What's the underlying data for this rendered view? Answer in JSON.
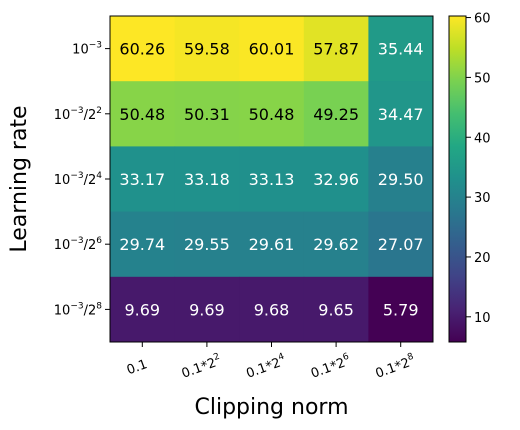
{
  "chart_data": {
    "type": "heatmap",
    "title": "",
    "xlabel": "Clipping norm",
    "ylabel": "Learning rate",
    "x_categories": [
      {
        "base": "0.1",
        "exp": ""
      },
      {
        "base": "0.1*2",
        "exp": "2"
      },
      {
        "base": "0.1*2",
        "exp": "4"
      },
      {
        "base": "0.1*2",
        "exp": "6"
      },
      {
        "base": "0.1*2",
        "exp": "8"
      }
    ],
    "y_categories": [
      {
        "base": "10",
        "exp": "−3",
        "suffix": "",
        "suffix_exp": ""
      },
      {
        "base": "10",
        "exp": "−3",
        "suffix": "/2",
        "suffix_exp": "2"
      },
      {
        "base": "10",
        "exp": "−3",
        "suffix": "/2",
        "suffix_exp": "4"
      },
      {
        "base": "10",
        "exp": "−3",
        "suffix": "/2",
        "suffix_exp": "6"
      },
      {
        "base": "10",
        "exp": "−3",
        "suffix": "/2",
        "suffix_exp": "8"
      }
    ],
    "values": [
      [
        60.26,
        59.58,
        60.01,
        57.87,
        35.44
      ],
      [
        50.48,
        50.31,
        50.48,
        49.25,
        34.47
      ],
      [
        33.17,
        33.18,
        33.13,
        32.96,
        29.5
      ],
      [
        29.74,
        29.55,
        29.61,
        29.62,
        27.07
      ],
      [
        9.69,
        9.69,
        9.68,
        9.65,
        5.79
      ]
    ],
    "value_labels": [
      [
        "60.26",
        "59.58",
        "60.01",
        "57.87",
        "35.44"
      ],
      [
        "50.48",
        "50.31",
        "50.48",
        "49.25",
        "34.47"
      ],
      [
        "33.17",
        "33.18",
        "33.13",
        "32.96",
        "29.50"
      ],
      [
        "29.74",
        "29.55",
        "29.61",
        "29.62",
        "27.07"
      ],
      [
        "9.69",
        "9.69",
        "9.68",
        "9.65",
        "5.79"
      ]
    ],
    "colormap": "viridis",
    "vmin": 5.79,
    "vmax": 60.26,
    "colorbar_ticks": [
      10,
      20,
      30,
      40,
      50,
      60
    ],
    "grid": false,
    "legend": "colorbar-right"
  }
}
